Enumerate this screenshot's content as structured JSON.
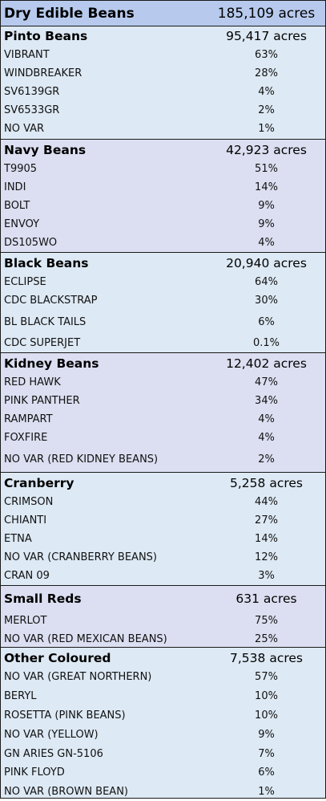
{
  "colors": {
    "header_fill": "#b7caed",
    "section_light": "#dde9f4",
    "section_lavender": "#dcdff1",
    "border": "#1a1a1a"
  },
  "title": {
    "label": "Dry Edible Beans",
    "value": "185,109 acres"
  },
  "sections": [
    {
      "name": "Pinto Beans",
      "acres": "95,417 acres",
      "rows": [
        {
          "label": "VIBRANT",
          "value": "63%"
        },
        {
          "label": "WINDBREAKER",
          "value": "28%"
        },
        {
          "label": "SV6139GR",
          "value": "4%"
        },
        {
          "label": "SV6533GR",
          "value": "2%"
        },
        {
          "label": "NO VAR",
          "value": "1%"
        }
      ]
    },
    {
      "name": "Navy Beans",
      "acres": "42,923 acres",
      "rows": [
        {
          "label": "T9905",
          "value": "51%"
        },
        {
          "label": "INDI",
          "value": "14%"
        },
        {
          "label": "BOLT",
          "value": "9%"
        },
        {
          "label": "ENVOY",
          "value": "9%"
        },
        {
          "label": "DS105WO",
          "value": "4%"
        }
      ]
    },
    {
      "name": "Black Beans",
      "acres": "20,940 acres",
      "rows": [
        {
          "label": "ECLIPSE",
          "value": "64%"
        },
        {
          "label": "CDC BLACKSTRAP",
          "value": "30%"
        },
        {
          "label": "BL BLACK TAILS",
          "value": "6%"
        },
        {
          "label": "CDC SUPERJET",
          "value": "0.1%"
        }
      ]
    },
    {
      "name": "Kidney Beans",
      "acres": "12,402 acres",
      "rows": [
        {
          "label": "RED HAWK",
          "value": "47%"
        },
        {
          "label": "PINK PANTHER",
          "value": "34%"
        },
        {
          "label": "RAMPART",
          "value": "4%"
        },
        {
          "label": "FOXFIRE",
          "value": "4%"
        },
        {
          "label": "NO VAR (RED KIDNEY BEANS)",
          "value": "2%"
        }
      ]
    },
    {
      "name": "Cranberry",
      "acres": "5,258 acres",
      "rows": [
        {
          "label": "CRIMSON",
          "value": "44%"
        },
        {
          "label": "CHIANTI",
          "value": "27%"
        },
        {
          "label": "ETNA",
          "value": "14%"
        },
        {
          "label": "NO VAR (CRANBERRY BEANS)",
          "value": "12%"
        },
        {
          "label": "CRAN 09",
          "value": "3%"
        }
      ]
    },
    {
      "name": "Small Reds",
      "acres": "631 acres",
      "rows": [
        {
          "label": "MERLOT",
          "value": "75%"
        },
        {
          "label": "NO VAR (RED MEXICAN BEANS)",
          "value": "25%"
        }
      ]
    },
    {
      "name": "Other Coloured",
      "acres": "7,538 acres",
      "rows": [
        {
          "label": "NO VAR (GREAT NORTHERN)",
          "value": "57%"
        },
        {
          "label": "BERYL",
          "value": "10%"
        },
        {
          "label": "ROSETTA (PINK BEANS)",
          "value": "10%"
        },
        {
          "label": "NO VAR (YELLOW)",
          "value": "9%"
        },
        {
          "label": "GN ARIES GN-5106",
          "value": "7%"
        },
        {
          "label": "PINK FLOYD",
          "value": "6%"
        },
        {
          "label": "NO VAR (BROWN BEAN)",
          "value": "1%"
        }
      ]
    }
  ]
}
